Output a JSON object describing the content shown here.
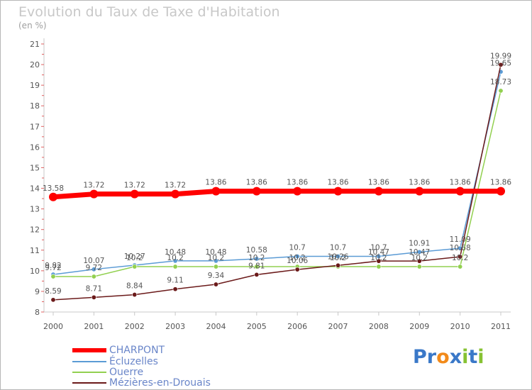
{
  "header": {
    "title": "Evolution du Taux de Taxe d'Habitation",
    "unit": "(en %)"
  },
  "logo": {
    "text": "Proxiti",
    "letters": [
      {
        "ch": "P",
        "color": "#3a78c8"
      },
      {
        "ch": "r",
        "color": "#3a78c8"
      },
      {
        "ch": "o",
        "color": "#f28a1a"
      },
      {
        "ch": "x",
        "color": "#3a78c8"
      },
      {
        "ch": "i",
        "color": "#86c232"
      },
      {
        "ch": "t",
        "color": "#3a78c8"
      },
      {
        "ch": "i",
        "color": "#86c232"
      }
    ]
  },
  "chart_data": {
    "type": "line",
    "title": "Evolution du Taux de Taxe d'Habitation",
    "ylabel": "(en %)",
    "x": [
      "2000",
      "2001",
      "2002",
      "2003",
      "2004",
      "2005",
      "2006",
      "2007",
      "2008",
      "2009",
      "2010",
      "2011"
    ],
    "ylim": [
      8,
      21
    ],
    "yticks": [
      8,
      9,
      10,
      11,
      12,
      13,
      14,
      15,
      16,
      17,
      18,
      19,
      20,
      21
    ],
    "ytick_labels": [
      "8",
      "9",
      "10",
      "11",
      "12",
      "13",
      "14",
      "15",
      "16",
      "17",
      "18",
      "19",
      "20",
      "21"
    ],
    "grid": false,
    "legend_position": "bottom-left",
    "series": [
      {
        "name": "CHARPONT",
        "color": "#ff0000",
        "values": [
          13.58,
          13.72,
          13.72,
          13.72,
          13.86,
          13.86,
          13.86,
          13.86,
          13.86,
          13.86,
          13.86,
          13.86
        ],
        "labels": [
          "13.58",
          "13.72",
          "13.72",
          "13.72",
          "13.86",
          "13.86",
          "13.86",
          "13.86",
          "13.86",
          "13.86",
          "13.86",
          "13.86"
        ]
      },
      {
        "name": "Écluzelles",
        "color": "#5b9bd5",
        "values": [
          9.82,
          10.07,
          10.27,
          10.48,
          10.48,
          10.58,
          10.7,
          10.7,
          10.7,
          10.91,
          11.09,
          19.65
        ],
        "labels": [
          "9.82",
          "10.07",
          "10.27",
          "10.48",
          "10.48",
          "10.58",
          "10.7",
          "10.7",
          "10.7",
          "10.91",
          "11.09",
          "19.65"
        ]
      },
      {
        "name": "Ouerre",
        "color": "#92d050",
        "values": [
          9.72,
          9.72,
          10.2,
          10.2,
          10.2,
          10.2,
          10.2,
          10.2,
          10.2,
          10.2,
          10.2,
          18.73
        ],
        "labels": [
          "9.72",
          "9.72",
          "10.2",
          "10.2",
          "10.2",
          "10.2",
          "10.2",
          "10.2",
          "10.2",
          "10.2",
          "10.2",
          "18.73"
        ]
      },
      {
        "name": "Mézières-en-Drouais",
        "color": "#6b1a1a",
        "values": [
          8.59,
          8.71,
          8.84,
          9.11,
          9.34,
          9.81,
          10.06,
          10.26,
          10.47,
          10.47,
          10.68,
          19.99
        ],
        "labels": [
          "8.59",
          "8.71",
          "8.84",
          "9.11",
          "9.34",
          "9.81",
          "10.06",
          "10.26",
          "10.47",
          "10.47",
          "10.68",
          "19.99"
        ]
      }
    ]
  }
}
